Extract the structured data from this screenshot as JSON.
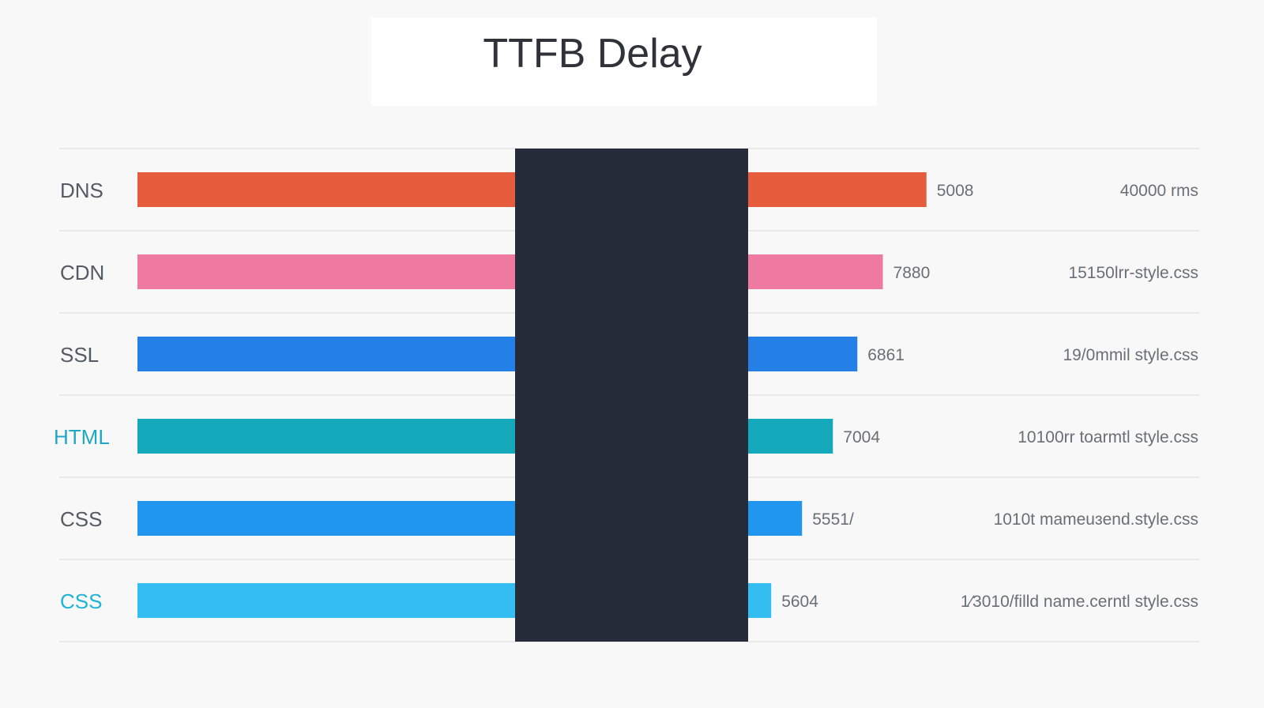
{
  "chart_data": {
    "type": "bar",
    "orientation": "horizontal",
    "title": "TTFB Delay",
    "categories": [
      "DNS",
      "CDN",
      "SSL",
      "HTML",
      "CSS",
      "CSS"
    ],
    "values": [
      5008,
      7880,
      6861,
      7004,
      5551,
      5604
    ],
    "value_labels": [
      "5008",
      "7880",
      "6861",
      "7004",
      "5551/",
      "5604"
    ],
    "right_labels": [
      "40000 rms",
      "15150lrr-style.css",
      "19/0mmil style.css",
      "10100rr toarmtl style.css",
      "1010t mameuɜend.style.css",
      "1⁄3010/filld name.cerntl style.css"
    ],
    "colors": [
      "#e85c3e",
      "#ef7aa1",
      "#2480e6",
      "#14a8bb",
      "#2196ee",
      "#33bdf0"
    ],
    "label_colors": [
      "#555a63",
      "#555a63",
      "#555a63",
      "#1fa8c6",
      "#555a63",
      "#1fb3d6"
    ],
    "bar_fraction": [
      0.742,
      0.701,
      0.677,
      0.654,
      0.625,
      0.596
    ],
    "overlay_color": "#252b38",
    "grid": true,
    "legend": "none"
  }
}
